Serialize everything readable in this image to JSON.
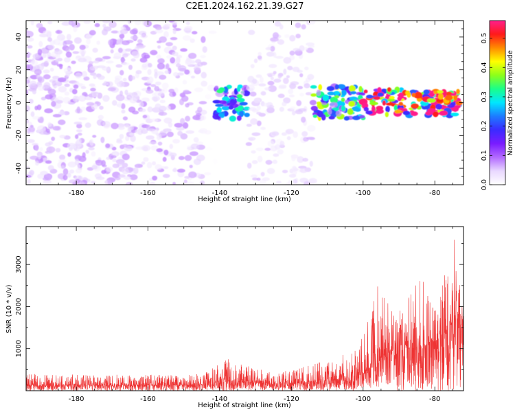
{
  "title": "C2E1.2024.162.21.39.G27",
  "chart_data": [
    {
      "type": "heatmap",
      "title": "C2E1.2024.162.21.39.G27",
      "xlabel": "Height of straight line (km)",
      "ylabel": "Frequency (Hz)",
      "xlim": [
        -194,
        -72
      ],
      "ylim": [
        -50,
        50
      ],
      "xticks": [
        -180,
        -160,
        -140,
        -120,
        -100,
        -80
      ],
      "yticks": [
        -40,
        -20,
        0,
        20,
        40
      ],
      "grid": false,
      "colorbar": {
        "label": "Normalized spectral amplitude",
        "range": [
          0.0,
          0.56
        ],
        "ticks": [
          0.0,
          0.1,
          0.2,
          0.3,
          0.4,
          0.5
        ],
        "colormap": [
          "#ffffff",
          "#e9d8ff",
          "#b36bff",
          "#7a1cff",
          "#3b2bff",
          "#1d7bff",
          "#00e6ff",
          "#19ff8a",
          "#8cff1a",
          "#ffff00",
          "#ff8c00",
          "#ff1a1a",
          "#ff1f8c"
        ]
      },
      "regions": [
        {
          "x": [
            -194,
            -144
          ],
          "y": [
            -50,
            50
          ],
          "level": "noise",
          "amplitude": 0.05
        },
        {
          "x": [
            -144,
            -141
          ],
          "y": [
            -50,
            50
          ],
          "level": "gap",
          "amplitude": 0.01
        },
        {
          "x": [
            -141,
            -132
          ],
          "y": [
            -10,
            10
          ],
          "level": "signal",
          "amplitude": 0.2
        },
        {
          "x": [
            -132,
            -114
          ],
          "y": [
            -50,
            50
          ],
          "level": "sparse noise",
          "amplitude": 0.04
        },
        {
          "x": [
            -114,
            -100
          ],
          "y": [
            -10,
            10
          ],
          "level": "signal",
          "amplitude": 0.25
        },
        {
          "x": [
            -100,
            -73
          ],
          "y": [
            -8,
            8
          ],
          "level": "strong signal",
          "amplitude": 0.45
        }
      ]
    },
    {
      "type": "line",
      "xlabel": "Height of straight line (km)",
      "ylabel": "SNR (10 * v/v)",
      "xlim": [
        -194,
        -72
      ],
      "ylim": [
        0,
        3900
      ],
      "xticks": [
        -180,
        -160,
        -140,
        -120,
        -100,
        -80
      ],
      "yticks": [
        1000,
        2000,
        3000
      ],
      "grid": false,
      "series_color": "#ee3333",
      "envelope": {
        "x": [
          -194,
          -160,
          -145,
          -141,
          -139,
          -135,
          -125,
          -115,
          -108,
          -104,
          -100,
          -96,
          -93,
          -90,
          -87,
          -84,
          -81,
          -78,
          -76,
          -74.5,
          -73,
          -72
        ],
        "baseline": [
          120,
          130,
          140,
          200,
          260,
          220,
          150,
          200,
          260,
          300,
          400,
          700,
          900,
          1000,
          1000,
          1050,
          1100,
          1300,
          1400,
          1700,
          1600,
          1400
        ],
        "peak": [
          400,
          380,
          400,
          600,
          800,
          650,
          420,
          600,
          800,
          900,
          1300,
          2500,
          2200,
          1900,
          2400,
          2700,
          2300,
          2500,
          3300,
          3800,
          2700,
          2400
        ]
      }
    }
  ]
}
